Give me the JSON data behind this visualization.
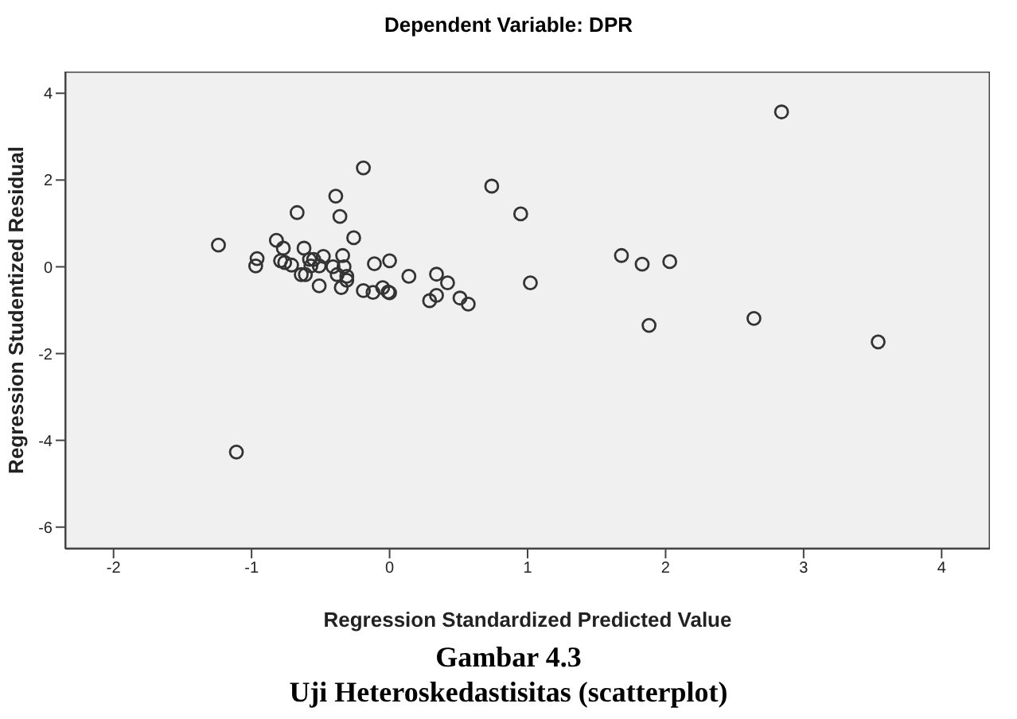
{
  "chart_data": {
    "type": "scatter",
    "title": "Dependent Variable: DPR",
    "xlabel": "Regression Standardized Predicted Value",
    "ylabel": "Regression Studentized Residual",
    "annotations": [
      "Gambar 4.3",
      "Uji Heteroskedastisitas (scatterplot)"
    ],
    "xlim": [
      -2.35,
      4.35
    ],
    "xticks": [
      -2,
      -1,
      0,
      1,
      2,
      3,
      4
    ],
    "ylim": [
      -6.5,
      4.5
    ],
    "yticks": [
      -6,
      -4,
      -2,
      0,
      2,
      4
    ],
    "grid": false,
    "legend": false,
    "marker": "circle",
    "series": [
      {
        "color": "#333333",
        "x": [
          -1.24,
          -0.97,
          -0.96,
          -0.82,
          -0.77,
          -0.79,
          -0.76,
          -0.71,
          -0.67,
          -0.64,
          -0.61,
          -0.62,
          -0.58,
          -0.55,
          -0.57,
          -0.51,
          -0.48,
          -0.51,
          -0.39,
          -0.36,
          -0.41,
          -0.38,
          -0.34,
          -0.33,
          -0.35,
          -0.31,
          -0.31,
          -0.26,
          -0.19,
          -0.19,
          -0.12,
          -0.11,
          -0.05,
          -0.01,
          0.0,
          0.0,
          0.14,
          0.29,
          0.34,
          0.34,
          0.42,
          0.51,
          0.57,
          0.74,
          0.95,
          1.02,
          1.68,
          1.83,
          2.03,
          1.88,
          2.64,
          2.84,
          3.54,
          -1.11
        ],
        "values": [
          0.5,
          0.02,
          0.19,
          0.61,
          0.43,
          0.14,
          0.1,
          0.04,
          1.25,
          -0.18,
          -0.18,
          0.43,
          0.17,
          0.17,
          0.02,
          0.02,
          0.24,
          -0.44,
          1.63,
          1.16,
          0.0,
          -0.18,
          0.26,
          0.0,
          -0.48,
          -0.22,
          -0.31,
          0.67,
          2.28,
          -0.55,
          -0.59,
          0.07,
          -0.48,
          -0.58,
          0.14,
          -0.6,
          -0.22,
          -0.78,
          -0.17,
          -0.66,
          -0.37,
          -0.72,
          -0.86,
          1.86,
          1.22,
          -0.37,
          0.26,
          0.06,
          0.12,
          -1.35,
          -1.19,
          3.57,
          -1.73,
          -4.27
        ]
      }
    ]
  }
}
